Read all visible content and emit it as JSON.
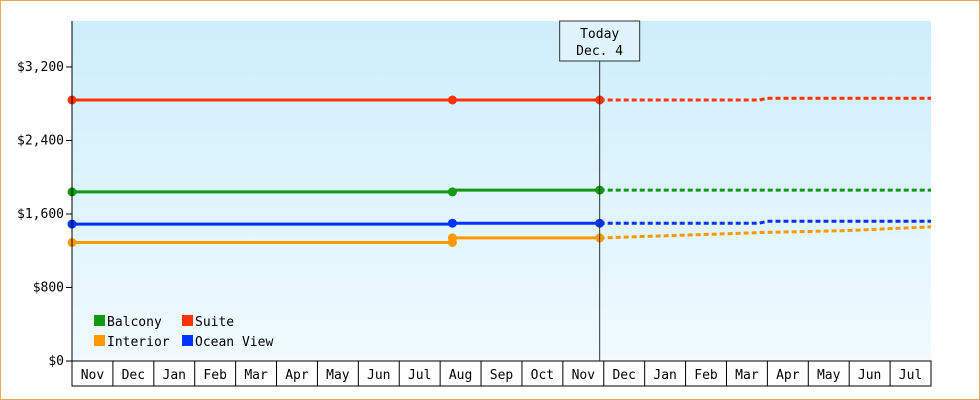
{
  "chart_data": {
    "type": "line",
    "title": "",
    "xlabel": "",
    "ylabel": "",
    "ylim": [
      0,
      3700
    ],
    "yticks": [
      0,
      800,
      1600,
      2400,
      3200
    ],
    "ytick_labels": [
      "$0",
      "$800",
      "$1,600",
      "$2,400",
      "$3,200"
    ],
    "months": [
      "Nov",
      "Dec",
      "Jan",
      "Feb",
      "Mar",
      "Apr",
      "May",
      "Jun",
      "Jul",
      "Aug",
      "Sep",
      "Oct",
      "Nov",
      "Dec",
      "Jan",
      "Feb",
      "Mar",
      "Apr",
      "May",
      "Jun",
      "Jul"
    ],
    "today": {
      "line1": "Today",
      "line2": "Dec. 4",
      "month_index": 12.9
    },
    "grid": false,
    "legend_position": "bottom-left",
    "series": [
      {
        "name": "Balcony",
        "color": "#119911",
        "actual": [
          [
            0,
            1840
          ],
          [
            9.3,
            1840
          ],
          [
            9.3,
            1860
          ],
          [
            12.9,
            1860
          ]
        ],
        "forecast": [
          [
            12.9,
            1860
          ],
          [
            21.0,
            1860
          ]
        ],
        "markers": [
          [
            0,
            1840
          ],
          [
            9.3,
            1840
          ],
          [
            12.9,
            1860
          ]
        ]
      },
      {
        "name": "Suite",
        "color": "#ff3300",
        "actual": [
          [
            0,
            2840
          ],
          [
            12.9,
            2840
          ]
        ],
        "forecast": [
          [
            12.9,
            2840
          ],
          [
            16.8,
            2840
          ],
          [
            17.0,
            2860
          ],
          [
            21.0,
            2860
          ]
        ],
        "markers": [
          [
            0,
            2840
          ],
          [
            9.3,
            2840
          ],
          [
            12.9,
            2840
          ]
        ]
      },
      {
        "name": "Interior",
        "color": "#ff9900",
        "actual": [
          [
            0,
            1290
          ],
          [
            9.3,
            1290
          ],
          [
            9.3,
            1340
          ],
          [
            12.9,
            1340
          ]
        ],
        "forecast": [
          [
            12.9,
            1340
          ],
          [
            15.0,
            1370
          ],
          [
            17.0,
            1400
          ],
          [
            19.0,
            1420
          ],
          [
            21.0,
            1460
          ]
        ],
        "markers": [
          [
            0,
            1290
          ],
          [
            9.3,
            1290
          ],
          [
            9.3,
            1340
          ],
          [
            12.9,
            1340
          ]
        ]
      },
      {
        "name": "Ocean View",
        "color": "#0033ff",
        "actual": [
          [
            0,
            1490
          ],
          [
            9.3,
            1490
          ],
          [
            9.3,
            1500
          ],
          [
            12.9,
            1500
          ]
        ],
        "forecast": [
          [
            12.9,
            1500
          ],
          [
            16.8,
            1500
          ],
          [
            17.0,
            1520
          ],
          [
            21.0,
            1520
          ]
        ],
        "markers": [
          [
            0,
            1490
          ],
          [
            9.3,
            1500
          ],
          [
            12.9,
            1500
          ]
        ]
      }
    ]
  }
}
